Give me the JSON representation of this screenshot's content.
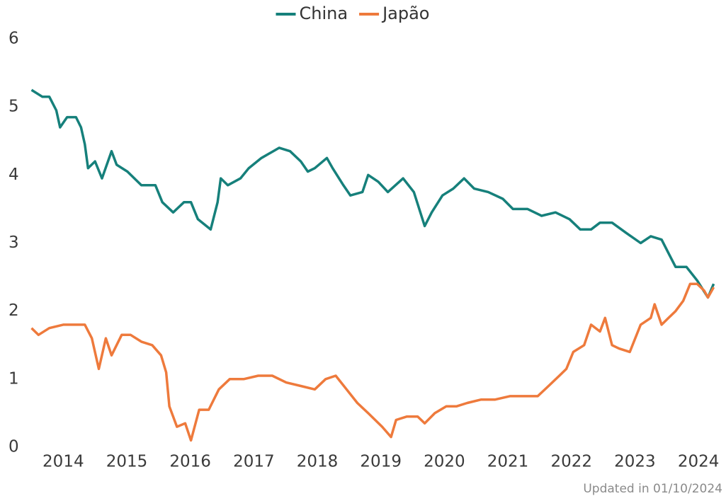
{
  "chart_data": {
    "type": "line",
    "note": "Updated in 01/10/2024",
    "xlim": [
      2013.95,
      2024.8
    ],
    "xticks": [
      {
        "value": 2014.5,
        "label": "2014"
      },
      {
        "value": 2015.5,
        "label": "2015"
      },
      {
        "value": 2016.5,
        "label": "2016"
      },
      {
        "value": 2017.5,
        "label": "2017"
      },
      {
        "value": 2018.5,
        "label": "2018"
      },
      {
        "value": 2019.5,
        "label": "2019"
      },
      {
        "value": 2020.5,
        "label": "2020"
      },
      {
        "value": 2021.5,
        "label": "2021"
      },
      {
        "value": 2022.5,
        "label": "2022"
      },
      {
        "value": 2023.5,
        "label": "2023"
      },
      {
        "value": 2024.5,
        "label": "2024"
      }
    ],
    "ylim": [
      0,
      6
    ],
    "yticks": [
      0,
      1,
      2,
      3,
      4,
      5,
      6
    ],
    "grid": false,
    "legend": "top",
    "series": [
      {
        "name": "China",
        "color": "#16807b",
        "x": [
          2014.0,
          2014.17,
          2014.28,
          2014.39,
          2014.45,
          2014.56,
          2014.7,
          2014.78,
          2014.84,
          2014.89,
          2015.0,
          2015.11,
          2015.26,
          2015.34,
          2015.51,
          2015.73,
          2015.95,
          2016.06,
          2016.23,
          2016.4,
          2016.51,
          2016.62,
          2016.82,
          2016.93,
          2016.98,
          2017.09,
          2017.29,
          2017.42,
          2017.62,
          2017.9,
          2018.07,
          2018.24,
          2018.35,
          2018.46,
          2018.65,
          2018.74,
          2018.91,
          2019.02,
          2019.21,
          2019.3,
          2019.46,
          2019.61,
          2019.85,
          2020.02,
          2020.19,
          2020.3,
          2020.47,
          2020.64,
          2020.81,
          2020.97,
          2021.19,
          2021.42,
          2021.58,
          2021.81,
          2022.03,
          2022.25,
          2022.47,
          2022.64,
          2022.81,
          2022.95,
          2023.14,
          2023.36,
          2023.59,
          2023.75,
          2023.92,
          2024.03,
          2024.14,
          2024.31,
          2024.48,
          2024.65,
          2024.74
        ],
        "values": [
          5.25,
          5.15,
          5.15,
          4.95,
          4.7,
          4.85,
          4.85,
          4.7,
          4.45,
          4.1,
          4.2,
          3.95,
          4.35,
          4.15,
          4.05,
          3.85,
          3.85,
          3.6,
          3.45,
          3.6,
          3.6,
          3.35,
          3.2,
          3.6,
          3.95,
          3.85,
          3.95,
          4.1,
          4.25,
          4.4,
          4.35,
          4.2,
          4.05,
          4.1,
          4.25,
          4.1,
          3.85,
          3.7,
          3.75,
          4.0,
          3.9,
          3.75,
          3.95,
          3.75,
          3.25,
          3.45,
          3.7,
          3.8,
          3.95,
          3.8,
          3.75,
          3.65,
          3.5,
          3.5,
          3.4,
          3.45,
          3.35,
          3.2,
          3.2,
          3.3,
          3.3,
          3.15,
          3.0,
          3.1,
          3.05,
          2.85,
          2.65,
          2.65,
          2.45,
          2.2,
          2.4
        ]
      },
      {
        "name": "Japão",
        "color": "#ee7a3c",
        "x": [
          2014.0,
          2014.11,
          2014.28,
          2014.5,
          2014.72,
          2014.84,
          2014.95,
          2015.06,
          2015.17,
          2015.26,
          2015.42,
          2015.56,
          2015.73,
          2015.9,
          2016.04,
          2016.12,
          2016.17,
          2016.29,
          2016.42,
          2016.51,
          2016.64,
          2016.79,
          2016.95,
          2017.12,
          2017.34,
          2017.57,
          2017.79,
          2018.01,
          2018.24,
          2018.46,
          2018.63,
          2018.79,
          2018.96,
          2019.13,
          2019.3,
          2019.52,
          2019.66,
          2019.74,
          2019.91,
          2020.08,
          2020.19,
          2020.35,
          2020.53,
          2020.69,
          2020.86,
          2021.08,
          2021.3,
          2021.53,
          2021.75,
          2021.97,
          2022.14,
          2022.31,
          2022.42,
          2022.53,
          2022.7,
          2022.81,
          2022.95,
          2023.03,
          2023.14,
          2023.25,
          2023.42,
          2023.59,
          2023.75,
          2023.81,
          2023.92,
          2024.03,
          2024.14,
          2024.26,
          2024.37,
          2024.48,
          2024.59,
          2024.65,
          2024.74
        ],
        "values": [
          1.75,
          1.65,
          1.75,
          1.8,
          1.8,
          1.8,
          1.6,
          1.15,
          1.6,
          1.35,
          1.65,
          1.65,
          1.55,
          1.5,
          1.35,
          1.1,
          0.6,
          0.3,
          0.35,
          0.1,
          0.55,
          0.55,
          0.85,
          1.0,
          1.0,
          1.05,
          1.05,
          0.95,
          0.9,
          0.85,
          1.0,
          1.05,
          0.85,
          0.65,
          0.5,
          0.3,
          0.15,
          0.4,
          0.45,
          0.45,
          0.35,
          0.5,
          0.6,
          0.6,
          0.65,
          0.7,
          0.7,
          0.75,
          0.75,
          0.75,
          0.9,
          1.05,
          1.15,
          1.4,
          1.5,
          1.8,
          1.7,
          1.9,
          1.5,
          1.45,
          1.4,
          1.8,
          1.9,
          2.1,
          1.8,
          1.9,
          2.0,
          2.15,
          2.4,
          2.4,
          2.3,
          2.2,
          2.35
        ]
      }
    ]
  }
}
